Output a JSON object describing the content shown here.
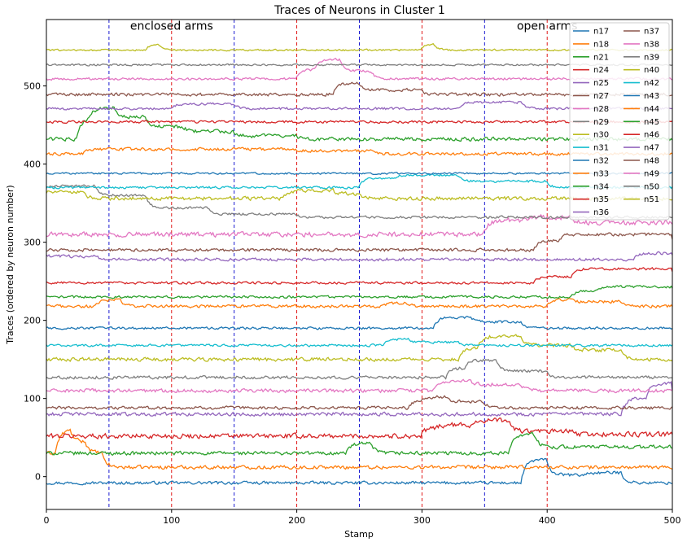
{
  "chart_data": {
    "type": "line",
    "title": "Traces of Neurons in Cluster 1",
    "xlabel": "Stamp",
    "ylabel": "Traces (ordered by neuron number)",
    "xlim": [
      0,
      500
    ],
    "ylim": [
      -42,
      585
    ],
    "xticks": [
      0,
      100,
      200,
      300,
      400,
      500
    ],
    "yticks": [
      0,
      100,
      200,
      300,
      400,
      500
    ],
    "annotations": [
      {
        "text": "enclosed arms",
        "x": 100,
        "y": 577
      },
      {
        "text": "open arms",
        "x": 400,
        "y": 577
      }
    ],
    "vlines_blue": [
      50,
      150,
      250,
      350
    ],
    "vlines_red": [
      100,
      200,
      300,
      400
    ],
    "legend_position": "top-right",
    "legend_columns": 2,
    "series": [
      {
        "name": "n17",
        "color": "#1f77b4",
        "base": -8,
        "noise": 2.5,
        "events": [
          [
            380,
            400,
            30
          ],
          [
            400,
            430,
            10
          ],
          [
            430,
            460,
            13
          ],
          [
            460,
            500,
            0
          ]
        ]
      },
      {
        "name": "n18",
        "color": "#ff7f0e",
        "base": 12,
        "noise": 3,
        "events": [
          [
            0,
            8,
            18
          ],
          [
            8,
            20,
            48
          ],
          [
            20,
            32,
            32
          ],
          [
            32,
            45,
            18
          ],
          [
            45,
            500,
            0
          ]
        ]
      },
      {
        "name": "n21",
        "color": "#2ca02c",
        "base": 30,
        "noise": 3,
        "events": [
          [
            240,
            260,
            12
          ],
          [
            370,
            390,
            25
          ],
          [
            390,
            500,
            8
          ]
        ]
      },
      {
        "name": "n24",
        "color": "#d62728",
        "base": 52,
        "noise": 4,
        "events": [
          [
            300,
            310,
            10
          ],
          [
            310,
            340,
            14
          ],
          [
            340,
            370,
            20
          ],
          [
            370,
            420,
            6
          ],
          [
            420,
            500,
            2
          ]
        ]
      },
      {
        "name": "n25",
        "color": "#9467bd",
        "base": 80,
        "noise": 3,
        "events": [
          [
            460,
            480,
            20
          ],
          [
            480,
            500,
            40
          ]
        ]
      },
      {
        "name": "n27",
        "color": "#8c564b",
        "base": 88,
        "noise": 2.5,
        "events": [
          [
            290,
            300,
            10
          ],
          [
            300,
            320,
            14
          ],
          [
            320,
            350,
            8
          ]
        ]
      },
      {
        "name": "n28",
        "color": "#e377c2",
        "base": 110,
        "noise": 3,
        "events": [
          [
            310,
            340,
            12
          ],
          [
            340,
            380,
            8
          ]
        ]
      },
      {
        "name": "n29",
        "color": "#7f7f7f",
        "base": 127,
        "noise": 2.5,
        "events": [
          [
            320,
            335,
            12
          ],
          [
            335,
            360,
            22
          ],
          [
            360,
            400,
            8
          ]
        ]
      },
      {
        "name": "n30",
        "color": "#bcbd22",
        "base": 150,
        "noise": 3,
        "events": [
          [
            330,
            345,
            15
          ],
          [
            345,
            380,
            30
          ],
          [
            380,
            420,
            18
          ],
          [
            420,
            460,
            12
          ]
        ]
      },
      {
        "name": "n31",
        "color": "#17becf",
        "base": 168,
        "noise": 2,
        "events": [
          [
            270,
            290,
            8
          ],
          [
            290,
            330,
            4
          ]
        ]
      },
      {
        "name": "n32",
        "color": "#1f77b4",
        "base": 190,
        "noise": 2,
        "events": [
          [
            310,
            340,
            14
          ],
          [
            340,
            380,
            8
          ]
        ]
      },
      {
        "name": "n33",
        "color": "#ff7f0e",
        "base": 218,
        "noise": 2.5,
        "events": [
          [
            40,
            60,
            8
          ],
          [
            270,
            290,
            4
          ],
          [
            400,
            420,
            8
          ],
          [
            420,
            460,
            6
          ]
        ]
      },
      {
        "name": "n34",
        "color": "#2ca02c",
        "base": 230,
        "noise": 2,
        "events": [
          [
            420,
            440,
            8
          ],
          [
            440,
            500,
            13
          ]
        ]
      },
      {
        "name": "n35",
        "color": "#d62728",
        "base": 248,
        "noise": 2,
        "events": [
          [
            390,
            420,
            8
          ],
          [
            420,
            500,
            18
          ]
        ]
      },
      {
        "name": "n36",
        "color": "#9467bd",
        "base": 278,
        "noise": 2.5,
        "events": [
          [
            0,
            40,
            4
          ],
          [
            470,
            500,
            8
          ]
        ]
      },
      {
        "name": "n37",
        "color": "#8c564b",
        "base": 290,
        "noise": 2.5,
        "events": [
          [
            390,
            410,
            12
          ],
          [
            410,
            500,
            20
          ]
        ]
      },
      {
        "name": "n38",
        "color": "#e377c2",
        "base": 310,
        "noise": 4,
        "events": [
          [
            350,
            380,
            18
          ],
          [
            380,
            420,
            22
          ],
          [
            420,
            500,
            15
          ]
        ]
      },
      {
        "name": "n39",
        "color": "#7f7f7f",
        "base": 332,
        "noise": 2,
        "events": [
          [
            0,
            40,
            40
          ],
          [
            40,
            80,
            28
          ],
          [
            80,
            130,
            12
          ],
          [
            130,
            200,
            4
          ]
        ]
      },
      {
        "name": "n40",
        "color": "#bcbd22",
        "base": 356,
        "noise": 3,
        "events": [
          [
            0,
            30,
            8
          ],
          [
            190,
            230,
            10
          ],
          [
            230,
            250,
            6
          ]
        ]
      },
      {
        "name": "n42",
        "color": "#17becf",
        "base": 370,
        "noise": 2,
        "events": [
          [
            250,
            280,
            12
          ],
          [
            280,
            330,
            16
          ],
          [
            330,
            400,
            8
          ]
        ]
      },
      {
        "name": "n43",
        "color": "#1f77b4",
        "base": 388,
        "noise": 1.5,
        "events": []
      },
      {
        "name": "n44",
        "color": "#ff7f0e",
        "base": 413,
        "noise": 2.5,
        "events": [
          [
            30,
            60,
            6
          ],
          [
            60,
            200,
            6
          ],
          [
            200,
            260,
            4
          ]
        ]
      },
      {
        "name": "n45",
        "color": "#2ca02c",
        "base": 432,
        "noise": 3,
        "events": [
          [
            25,
            35,
            28
          ],
          [
            35,
            55,
            40
          ],
          [
            55,
            80,
            28
          ],
          [
            80,
            110,
            16
          ],
          [
            110,
            150,
            10
          ],
          [
            150,
            200,
            4
          ]
        ]
      },
      {
        "name": "n46",
        "color": "#d62728",
        "base": 454,
        "noise": 2,
        "events": []
      },
      {
        "name": "n47",
        "color": "#9467bd",
        "base": 471,
        "noise": 2,
        "events": [
          [
            100,
            150,
            6
          ],
          [
            330,
            380,
            8
          ]
        ]
      },
      {
        "name": "n48",
        "color": "#8c564b",
        "base": 489,
        "noise": 2.5,
        "events": [
          [
            230,
            250,
            15
          ],
          [
            250,
            300,
            6
          ]
        ]
      },
      {
        "name": "n49",
        "color": "#e377c2",
        "base": 509,
        "noise": 2,
        "events": [
          [
            200,
            215,
            12
          ],
          [
            215,
            235,
            25
          ],
          [
            235,
            260,
            10
          ]
        ]
      },
      {
        "name": "n50",
        "color": "#7f7f7f",
        "base": 527,
        "noise": 1.5,
        "events": []
      },
      {
        "name": "n51",
        "color": "#bcbd22",
        "base": 546,
        "noise": 1.5,
        "events": [
          [
            80,
            90,
            8
          ],
          [
            300,
            310,
            8
          ]
        ]
      }
    ]
  }
}
